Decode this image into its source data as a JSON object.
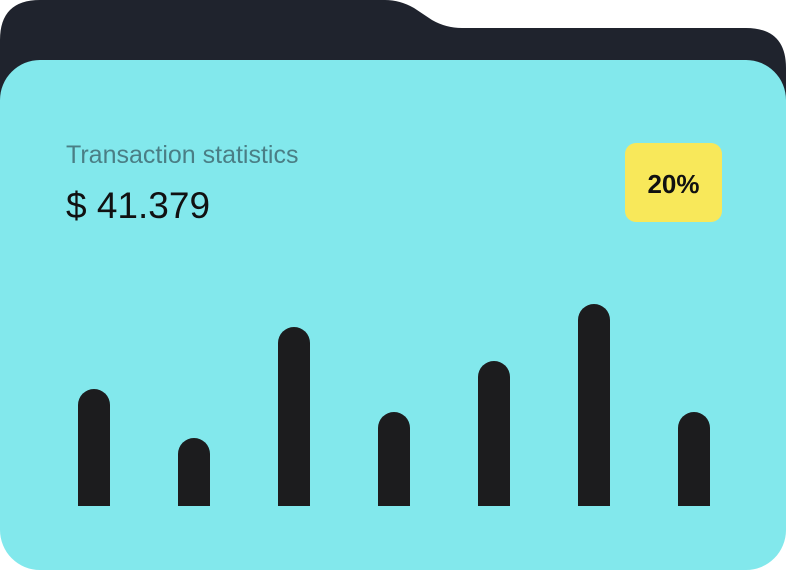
{
  "header": {
    "title": "Transaction statistics",
    "amount": "$ 41.379",
    "badge": "20%"
  },
  "chart_data": {
    "type": "bar",
    "values": [
      117,
      68,
      179,
      94,
      145,
      202,
      94
    ],
    "ylim": [
      0,
      220
    ],
    "color": "#1c1c1e"
  }
}
